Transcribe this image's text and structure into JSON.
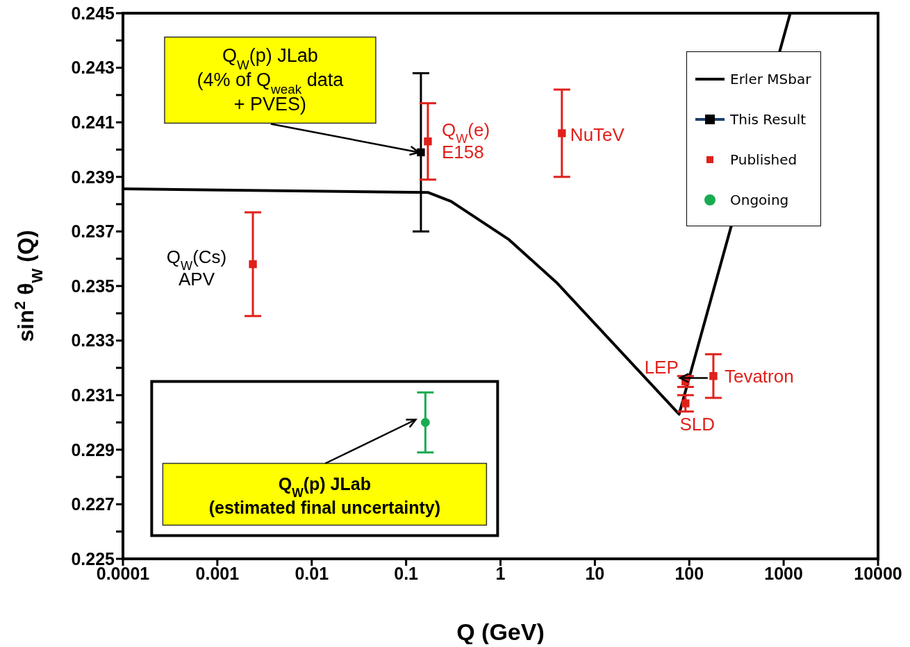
{
  "chart_data": {
    "type": "scatter",
    "xlabel": "Q (GeV)",
    "ylabel": "sin$^{2}$ θ$_{W}$ (Q)",
    "log": "x",
    "grid": false,
    "legend": "top right",
    "xlim": [
      0.0001,
      10000
    ],
    "xticks": [
      0.0001,
      0.001,
      0.01,
      0.1,
      1,
      10,
      100,
      1000,
      10000
    ],
    "ylim": [
      0.225,
      0.245
    ],
    "yticks": [
      0.225,
      {
        "value": 0.226,
        "label": null
      },
      0.227,
      {
        "value": 0.228,
        "label": null
      },
      0.229,
      {
        "value": 0.23,
        "label": null
      },
      0.231,
      {
        "value": 0.232,
        "label": null
      },
      0.233,
      {
        "value": 0.234,
        "label": null
      },
      0.235,
      {
        "value": 0.236,
        "label": null
      },
      0.237,
      {
        "value": 0.238,
        "label": null
      },
      0.239,
      {
        "value": 0.24,
        "label": null
      },
      0.241,
      {
        "value": 0.242,
        "label": null
      },
      0.243,
      {
        "value": 0.244,
        "label": null
      },
      0.245
    ],
    "series": [
      {
        "name": "Erler MSbar",
        "type": "line",
        "color": "#000000",
        "marker": "none",
        "line_style": "solid",
        "x": [
          0.0001,
          0.17,
          0.3,
          1.23,
          4.0,
          78,
          1175
        ],
        "values": [
          0.23856,
          0.23843,
          0.2381,
          0.2367,
          0.2351,
          0.2303,
          0.245
        ]
      },
      {
        "name": "This Result",
        "color": "#000000",
        "marker": "square",
        "x": [
          0.1435
        ],
        "values": [
          0.2399
        ],
        "errors": [
          0.0029
        ]
      },
      {
        "name": "Published",
        "color": "#e0201b",
        "marker": "square",
        "x": [
          0.00238,
          0.17,
          4.47,
          91.2,
          91.2,
          180
        ],
        "values": [
          0.2358,
          0.2403,
          0.2406,
          0.2315,
          0.2307,
          0.2317
        ],
        "errors": [
          0.0019,
          0.0014,
          0.0016,
          0.0002,
          0.0003,
          0.0008
        ]
      },
      {
        "name": "Ongoing",
        "color": "#1aab50",
        "marker": "circle",
        "x": [
          0.16
        ],
        "values": [
          0.23
        ],
        "errors": [
          0.0011
        ]
      }
    ],
    "annotations": [
      {
        "text": "Q$_{W}$(Cs)\nAPV",
        "x": 0.00238,
        "y": 0.2358
      },
      {
        "text": "Q$_{W}$(e)\nE158",
        "x": 0.17,
        "y": 0.2403
      },
      {
        "text": "NuTeV",
        "x": 4.47,
        "y": 0.2406
      },
      {
        "text": "LEP",
        "x": 91.2,
        "y": 0.2315
      },
      {
        "text": "SLD",
        "x": 91.2,
        "y": 0.2307
      },
      {
        "text": "Tevatron",
        "x": 180,
        "y": 0.2317
      },
      {
        "text": "Q$_{W}$(p) JLab\n(4% of Q$_{weak}$ data\n+ PVES)",
        "x": 0.1435,
        "y": 0.2399
      },
      {
        "text": "Q$_{W}$(p) JLab\n(estimated final uncertainty)",
        "x": 0.16,
        "y": 0.23
      }
    ]
  }
}
